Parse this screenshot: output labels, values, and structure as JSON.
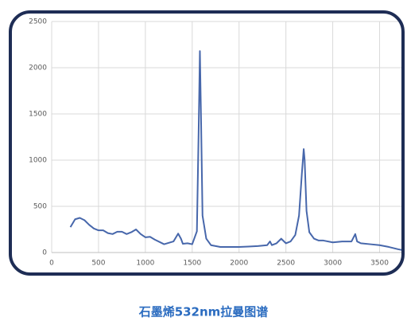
{
  "chart_data": {
    "type": "line",
    "caption": "石墨烯532nm拉曼图谱",
    "x": [
      200,
      250,
      300,
      350,
      400,
      450,
      500,
      550,
      600,
      650,
      700,
      750,
      800,
      850,
      900,
      950,
      1000,
      1050,
      1100,
      1200,
      1300,
      1350,
      1380,
      1400,
      1450,
      1500,
      1550,
      1570,
      1582,
      1595,
      1610,
      1650,
      1700,
      1800,
      1900,
      2000,
      2100,
      2200,
      2300,
      2330,
      2350,
      2400,
      2450,
      2500,
      2550,
      2600,
      2640,
      2670,
      2690,
      2700,
      2720,
      2750,
      2800,
      2850,
      2900,
      3000,
      3100,
      3200,
      3240,
      3260,
      3300,
      3400,
      3500,
      3600,
      3700,
      3750
    ],
    "series": [
      {
        "color": "#4767ab",
        "values": [
          275,
          360,
          375,
          350,
          300,
          260,
          240,
          240,
          210,
          200,
          225,
          225,
          200,
          220,
          250,
          200,
          165,
          170,
          140,
          90,
          120,
          205,
          150,
          95,
          100,
          90,
          230,
          1400,
          2180,
          1400,
          400,
          150,
          80,
          60,
          60,
          60,
          65,
          70,
          80,
          120,
          80,
          100,
          150,
          100,
          120,
          190,
          400,
          850,
          1120,
          1000,
          450,
          220,
          150,
          130,
          130,
          110,
          120,
          120,
          200,
          120,
          100,
          90,
          80,
          60,
          35,
          25
        ]
      }
    ],
    "xlim": [
      0,
      3750
    ],
    "ylim": [
      0,
      2500
    ],
    "xticks": [
      0,
      500,
      1000,
      1500,
      2000,
      2500,
      3000,
      3500
    ],
    "yticks": [
      0,
      500,
      1000,
      1500,
      2000,
      2500
    ],
    "grid": true
  }
}
